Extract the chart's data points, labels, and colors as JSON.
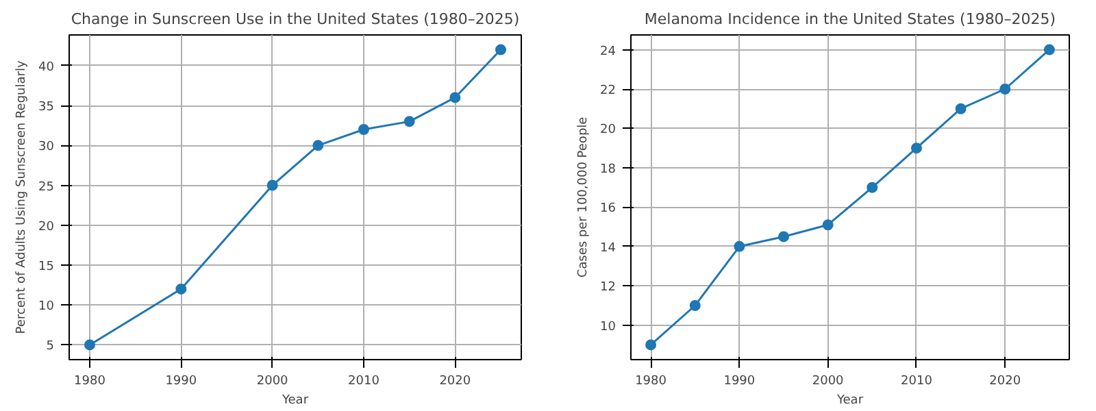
{
  "chart_data": [
    {
      "type": "line",
      "title": "Change in Sunscreen Use in the United States (1980–2025)",
      "xlabel": "Year",
      "ylabel": "Percent of Adults Using Sunscreen Regularly",
      "x": [
        1980,
        1990,
        2000,
        2005,
        2010,
        2015,
        2020,
        2025
      ],
      "series": [
        {
          "color": "#1f77b4",
          "values": [
            5,
            12,
            25,
            30,
            32,
            33,
            36,
            42
          ]
        }
      ],
      "xlim": [
        1977.75,
        2027.25
      ],
      "xticks": [
        1980,
        1990,
        2000,
        2010,
        2020
      ],
      "ylim": [
        3.15,
        43.85
      ],
      "yticks": [
        5,
        10,
        15,
        20,
        25,
        30,
        35,
        40
      ],
      "grid": true,
      "marker": "circle"
    },
    {
      "type": "line",
      "title": "Melanoma Incidence in the United States (1980–2025)",
      "xlabel": "Year",
      "ylabel": "Cases per 100,000 People",
      "x": [
        1980,
        1985,
        1990,
        1995,
        2000,
        2005,
        2010,
        2015,
        2020,
        2025
      ],
      "series": [
        {
          "color": "#1f77b4",
          "values": [
            9,
            11,
            14,
            14.5,
            15.1,
            17,
            19,
            21,
            22,
            24
          ]
        }
      ],
      "xlim": [
        1977.75,
        2027.25
      ],
      "xticks": [
        1980,
        1990,
        2000,
        2010,
        2020
      ],
      "ylim": [
        8.25,
        24.75
      ],
      "yticks": [
        10,
        12,
        14,
        16,
        18,
        20,
        22,
        24
      ],
      "grid": true,
      "marker": "circle"
    }
  ]
}
